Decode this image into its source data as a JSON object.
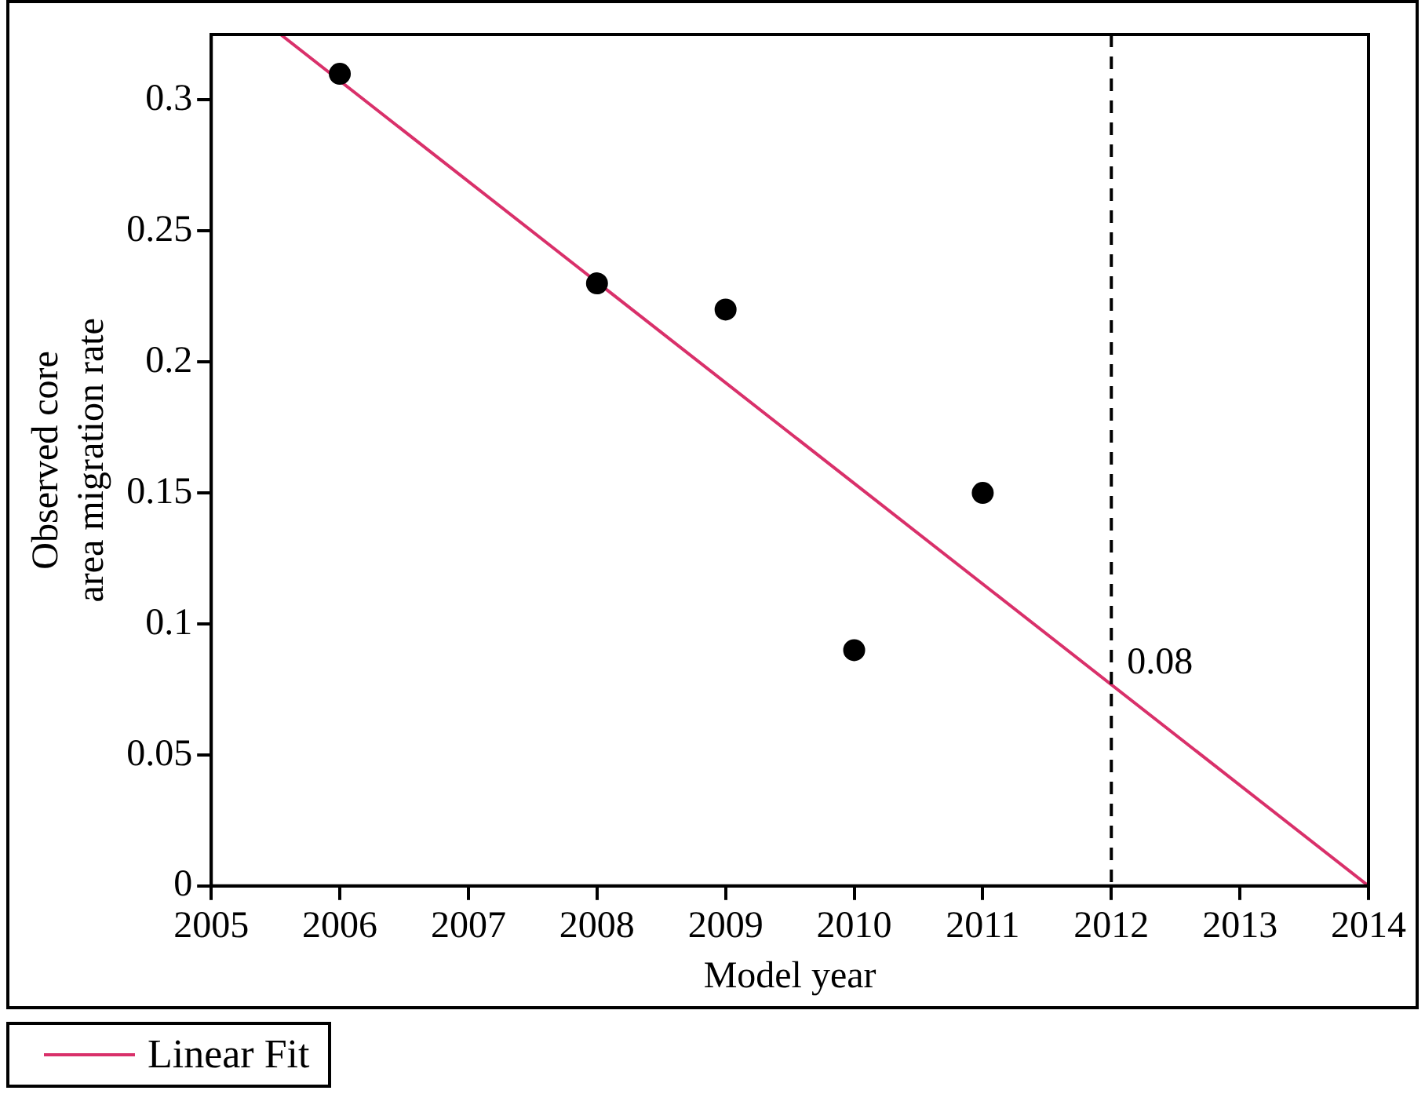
{
  "chart_data": {
    "type": "scatter",
    "xlabel": "Model year",
    "ylabel": "Observed core area migration rate",
    "series": [
      {
        "type": "scatter",
        "color": "#000000",
        "x": [
          2006,
          2008,
          2009,
          2010,
          2011
        ],
        "values": [
          0.31,
          0.23,
          0.22,
          0.09,
          0.15
        ],
        "marker": "circle"
      },
      {
        "type": "line",
        "name": "Linear Fit",
        "color": "#d9306a",
        "x": [
          2005.54,
          2014
        ],
        "values": [
          0.325,
          0
        ],
        "marker": "none",
        "line_style": "solid"
      }
    ],
    "xlim": [
      2005,
      2014
    ],
    "xticks": [
      2005,
      2006,
      2007,
      2008,
      2009,
      2010,
      2011,
      2012,
      2013,
      2014
    ],
    "ylim": [
      0,
      0.325
    ],
    "yticks": [
      0,
      0.05,
      0.1,
      0.15,
      0.2,
      0.25,
      0.3
    ],
    "ref_lines": [
      {
        "axis": "x",
        "value": 2012,
        "color": "#000000",
        "line_style": "dashed"
      }
    ],
    "annotations": [
      {
        "text": "0.08",
        "x": 2012,
        "y": 0.08
      }
    ],
    "grid": false,
    "legend": "bottom left"
  }
}
